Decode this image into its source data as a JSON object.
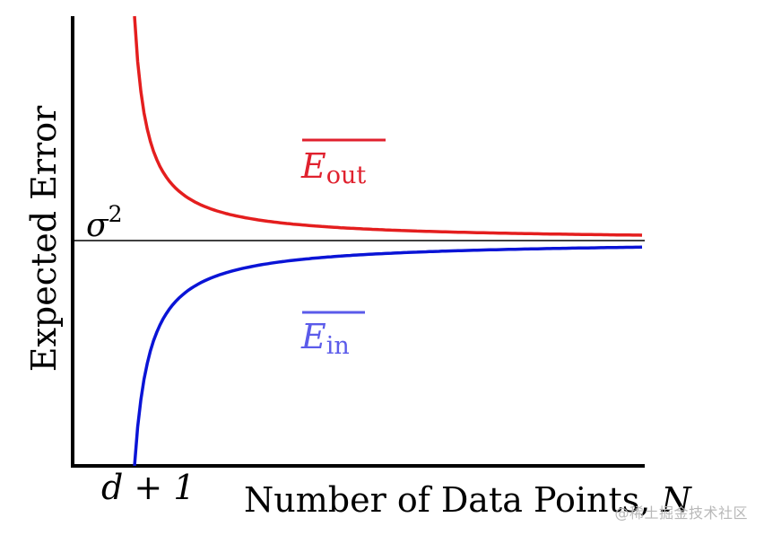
{
  "chart_data": {
    "type": "line",
    "xlabel": "Number of Data Points, ",
    "xlabel_symbol": "N",
    "ylabel": "Expected Error",
    "x_tick_label": "d + 1",
    "reference_line": {
      "label": "σ",
      "exponent": "2",
      "color": "#000000"
    },
    "series": [
      {
        "label_base": "E",
        "label_sub": "out",
        "color": "#e41e1e",
        "label_color": "#e0212e",
        "shape": "decreasing-to-asymptote"
      },
      {
        "label_base": "E",
        "label_sub": "in",
        "color": "#0a14d6",
        "label_color": "#5b5bea",
        "shape": "increasing-to-asymptote"
      }
    ]
  },
  "watermark": "@稀土掘金技术社区"
}
